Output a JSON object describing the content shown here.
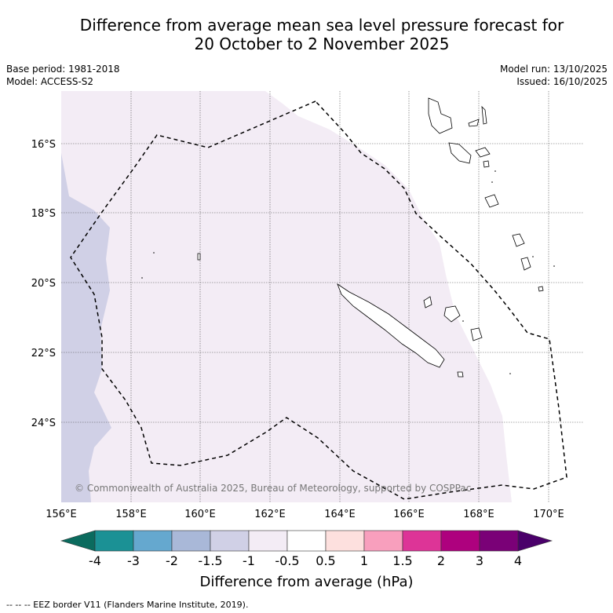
{
  "title": {
    "line1": "Difference from average mean sea level pressure forecast for",
    "line2": "20 October to 2 November 2025"
  },
  "meta": {
    "base_period": "Base period: 1981-2018",
    "model": "Model: ACCESS-S2",
    "model_run": "Model run: 13/10/2025",
    "issued": "Issued: 16/10/2025"
  },
  "map": {
    "lat_labels": [
      "16°S",
      "18°S",
      "20°S",
      "22°S",
      "24°S"
    ],
    "lon_labels": [
      "156°E",
      "158°E",
      "160°E",
      "162°E",
      "164°E",
      "166°E",
      "168°E",
      "170°E"
    ],
    "copyright": "© Commonwealth of Australia 2025, Bureau of Meteorology, supported by COSPPac",
    "colors": {
      "band_neg15_neg1": "#d0d0e6",
      "band_neg1_neg05": "#f3ecf5",
      "gridline": "#555555"
    }
  },
  "colorbar": {
    "labels": [
      "-4",
      "-3",
      "-2",
      "-1.5",
      "-1",
      "-0.5",
      "0.5",
      "1",
      "1.5",
      "2",
      "3",
      "4"
    ],
    "colors": [
      "#1b9195",
      "#65a8cf",
      "#a9b8d8",
      "#d0d0e6",
      "#f3ecf5",
      "#ffffff",
      "#fde0de",
      "#f89fbd",
      "#dd3497",
      "#ae017e",
      "#7a0177"
    ],
    "low_extend_color": "#0b6b5e",
    "high_extend_color": "#4a006a",
    "xlabel": "Difference from average (hPa)"
  },
  "footer": "-- -- -- EEZ border V11 (Flanders Marine Institute, 2019)."
}
